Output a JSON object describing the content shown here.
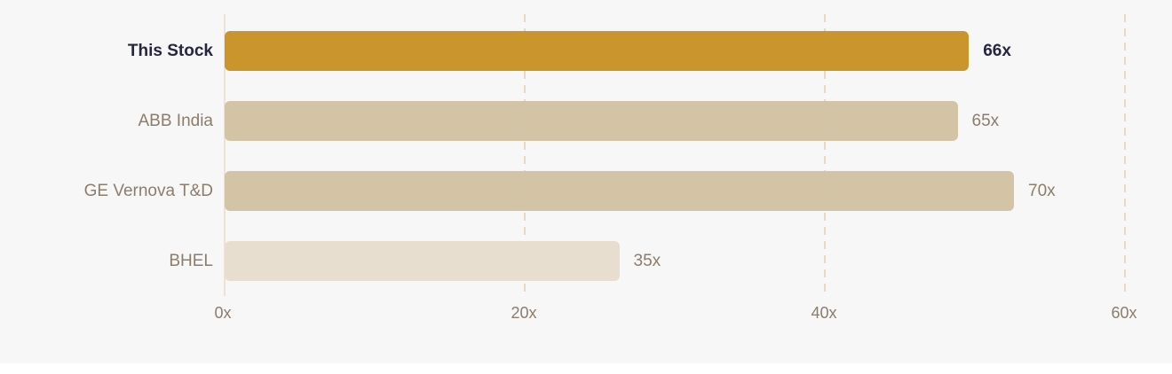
{
  "chart_data": {
    "type": "bar",
    "orientation": "horizontal",
    "title": "",
    "xlabel": "",
    "ylabel": "",
    "categories": [
      "This Stock",
      "ABB India",
      "GE Vernova T&D",
      "BHEL"
    ],
    "values": [
      66,
      65,
      70,
      35
    ],
    "value_labels": [
      "66x",
      "65x",
      "70x",
      "35x"
    ],
    "x_ticks": [
      "0x",
      "20x",
      "40x",
      "60x"
    ],
    "x_tick_values": [
      0,
      20,
      40,
      60
    ],
    "highlight_index": 0,
    "grid": "vertical-dashed",
    "legend": "none",
    "bar_colors": [
      "#C9952C",
      "#D2C4A4",
      "#D2C4A4",
      "#E7DED0"
    ],
    "colors": {
      "background": "#F7F7F8",
      "highlight_bar": "#C9952C",
      "peer_bar": "#D2C4A4",
      "light_bar": "#E7DED0",
      "highlight_text": "#26263E",
      "muted_text": "#8C7D6B",
      "gridline": "#E8D9C3",
      "axis_line": "#EFE2D0"
    }
  }
}
